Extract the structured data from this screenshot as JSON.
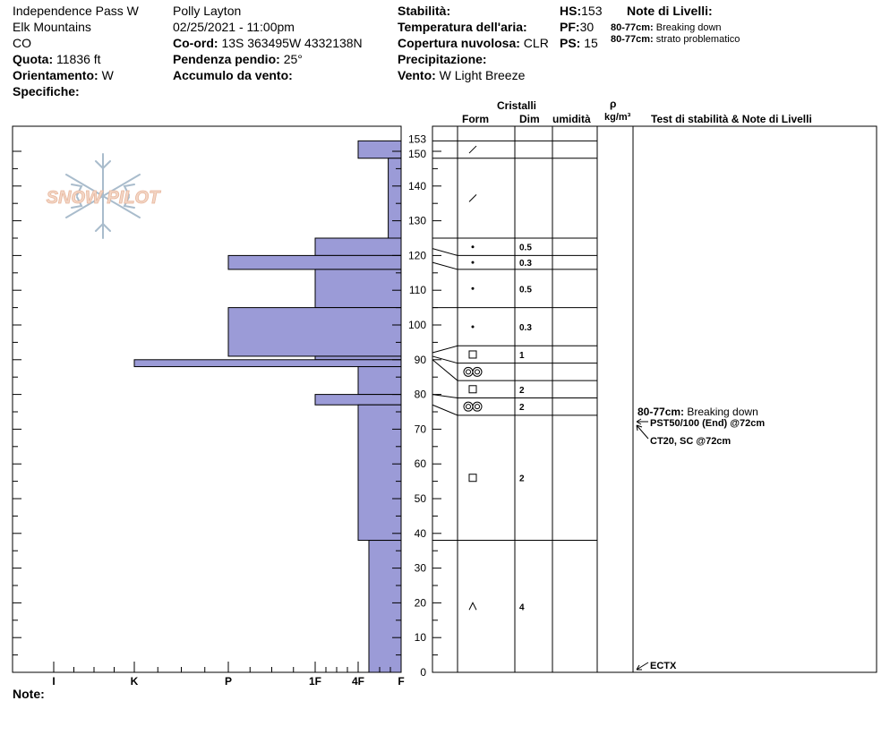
{
  "header": {
    "location": "Independence Pass W",
    "range": "Elk Mountains",
    "state": "CO",
    "elevation_label": "Quota:",
    "elevation_value": "11836 ft",
    "aspect_label": "Orientamento:",
    "aspect_value": "W",
    "specifics_label": "Specifiche:",
    "observer": "Polly Layton",
    "datetime": "02/25/2021 - 11:00pm",
    "coord_label": "Co-ord:",
    "coord_value": "13S 363495W 4332138N",
    "slope_label": "Pendenza pendio:",
    "slope_value": "25°",
    "wind_loading_label": "Accumulo da vento:",
    "stability_label": "Stabilità:",
    "air_temp_label": "Temperatura dell'aria:",
    "cloud_label": "Copertura nuvolosa:",
    "cloud_value": "CLR",
    "precip_label": "Precipitazione:",
    "wind_label": "Vento:",
    "wind_value": "W Light Breeze",
    "hs_label": "HS:",
    "hs_value": "153",
    "pf_label": "PF:",
    "pf_value": "30",
    "ps_label": "PS:",
    "ps_value": "15",
    "layer_notes_label": "Note di Livelli:",
    "layer_notes": [
      {
        "range": "80-77cm:",
        "text": "Breaking down"
      },
      {
        "range": "80-77cm:",
        "text": "strato problematico"
      }
    ]
  },
  "logo_text": "SNOW PILOT",
  "column_headers": {
    "crystals": "Cristalli",
    "form": "Form",
    "dim": "Dim",
    "moisture": "umidità",
    "rho": "ρ",
    "density_unit": "kg/m³",
    "tests": "Test di stabilità & Note di Livelli"
  },
  "footer": {
    "notes_label": "Note:"
  },
  "colors": {
    "hardness_fill": "#9b9bd7",
    "stroke": "#000000"
  },
  "chart_data": {
    "type": "snow_profile",
    "total_depth_cm": 153,
    "y_axis_ticks": [
      0,
      10,
      20,
      30,
      40,
      50,
      60,
      70,
      80,
      90,
      100,
      110,
      120,
      130,
      140,
      150,
      153
    ],
    "hardness_scale": [
      "F",
      "4F",
      "1F",
      "P",
      "K",
      "I"
    ],
    "hardness_ticks": [
      {
        "label": "I",
        "index": 5
      },
      {
        "label": "K",
        "index": 4
      },
      {
        "label": "P",
        "index": 3
      },
      {
        "label": "1F",
        "index": 2
      },
      {
        "label": "4F",
        "index": 1
      },
      {
        "label": "F",
        "index": 0
      }
    ],
    "hardness_profile": [
      {
        "top": 153,
        "bottom": 148,
        "hardness": 1
      },
      {
        "top": 148,
        "bottom": 125,
        "hardness": 0.3
      },
      {
        "top": 125,
        "bottom": 120,
        "hardness": 2
      },
      {
        "top": 120,
        "bottom": 116,
        "hardness": 3
      },
      {
        "top": 116,
        "bottom": 105,
        "hardness": 2
      },
      {
        "top": 105,
        "bottom": 91,
        "hardness": 3
      },
      {
        "top": 91,
        "bottom": 90,
        "hardness": 2
      },
      {
        "top": 90,
        "bottom": 88,
        "hardness": 4
      },
      {
        "top": 88,
        "bottom": 80,
        "hardness": 1
      },
      {
        "top": 80,
        "bottom": 77,
        "hardness": 2
      },
      {
        "top": 77,
        "bottom": 38,
        "hardness": 1
      },
      {
        "top": 38,
        "bottom": 0,
        "hardness": 0.75
      }
    ],
    "layers": [
      {
        "top": 153,
        "bottom": 148,
        "form": "slash",
        "dim": ""
      },
      {
        "top": 148,
        "bottom": 125,
        "form": "slash",
        "dim": ""
      },
      {
        "top": 125,
        "bottom": 120,
        "form": "dot",
        "dim": "0.5"
      },
      {
        "top": 120,
        "bottom": 116,
        "form": "dot",
        "dim": "0.3"
      },
      {
        "top": 116,
        "bottom": 105,
        "form": "dot",
        "dim": "0.5"
      },
      {
        "top": 105,
        "bottom": 94,
        "form": "dot",
        "dim": "0.3"
      },
      {
        "top": 94,
        "bottom": 89,
        "form": "square",
        "dim": "1"
      },
      {
        "top": 89,
        "bottom": 84,
        "form": "double-ring",
        "dim": ""
      },
      {
        "top": 84,
        "bottom": 79,
        "form": "square",
        "dim": "2"
      },
      {
        "top": 79,
        "bottom": 74,
        "form": "double-ring",
        "dim": "2"
      },
      {
        "top": 74,
        "bottom": 38,
        "form": "square",
        "dim": "2"
      },
      {
        "top": 38,
        "bottom": 0,
        "form": "caret",
        "dim": "4"
      }
    ],
    "layer_lines": [
      {
        "depth": 153,
        "leftDepth": 153
      },
      {
        "depth": 148,
        "leftDepth": 148
      },
      {
        "depth": 125,
        "leftDepth": 125
      },
      {
        "depth": 120,
        "leftDepth": 122
      },
      {
        "depth": 116,
        "leftDepth": 118
      },
      {
        "depth": 105,
        "leftDepth": 105
      },
      {
        "depth": 94,
        "leftDepth": 92
      },
      {
        "depth": 89,
        "leftDepth": 91
      },
      {
        "depth": 84,
        "leftDepth": 90
      },
      {
        "depth": 79,
        "leftDepth": 80
      },
      {
        "depth": 74,
        "leftDepth": 77
      },
      {
        "depth": 38,
        "leftDepth": 38
      }
    ],
    "stability_notes": [
      {
        "depth": 75,
        "label": "80-77cm:",
        "text": "Breaking down"
      },
      {
        "depth": 72,
        "label": "",
        "text": "PST50/100 (End) @72cm"
      },
      {
        "depth": 67,
        "label": "",
        "text": "CT20, SC @72cm"
      },
      {
        "depth": 2,
        "label": "",
        "text": "ECTX"
      }
    ]
  }
}
